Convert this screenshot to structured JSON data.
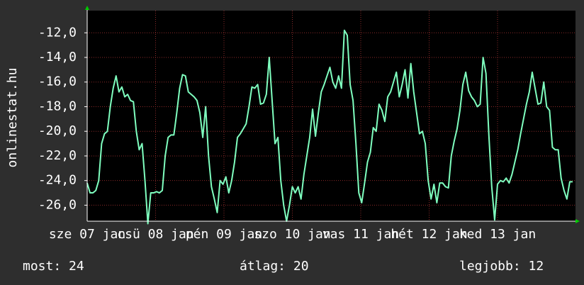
{
  "chart_data": {
    "type": "line",
    "ylabel": "onlinestat.hu",
    "xticks": [
      "sze 07 jan",
      "csü 08 jan",
      "pén 09 jan",
      "szo 10 jan",
      "vas 11 jan",
      "hét 12 jan",
      "ked 13 jan"
    ],
    "ylim": [
      -27.3,
      -10.2
    ],
    "yticks": [
      {
        "value": -26,
        "label": "-26,0"
      },
      {
        "value": -24,
        "label": "-24,0"
      },
      {
        "value": -22,
        "label": "-22,0"
      },
      {
        "value": -20,
        "label": "-20,0"
      },
      {
        "value": -18,
        "label": "-18,0"
      },
      {
        "value": -16,
        "label": "-16,0"
      },
      {
        "value": -14,
        "label": "-14,0"
      },
      {
        "value": -12,
        "label": "-12,0"
      }
    ],
    "grid": true,
    "series": [
      {
        "color": "#7fffbf",
        "values": [
          -24.2,
          -25,
          -25,
          -24.8,
          -24,
          -21,
          -20.2,
          -20,
          -18,
          -16.5,
          -15.5,
          -16.8,
          -16.4,
          -17.2,
          -17,
          -17.5,
          -17.6,
          -20,
          -21.5,
          -21,
          -24,
          -27.5,
          -25,
          -25,
          -24.9,
          -25,
          -24.8,
          -22,
          -20.5,
          -20.3,
          -20.3,
          -18.5,
          -16.5,
          -15.4,
          -15.5,
          -16.8,
          -17,
          -17.2,
          -17.5,
          -18.5,
          -20.5,
          -18,
          -22,
          -24.5,
          -25.5,
          -26.6,
          -24,
          -24.3,
          -23.7,
          -25,
          -24,
          -22.5,
          -20.5,
          -20.2,
          -19.8,
          -19.4,
          -18,
          -16.4,
          -16.5,
          -16.2,
          -17.8,
          -17.7,
          -17,
          -14,
          -17.5,
          -21,
          -20.5,
          -24,
          -26,
          -27.3,
          -26,
          -24.5,
          -25,
          -24.5,
          -25.5,
          -23.5,
          -22,
          -20.5,
          -18.2,
          -20.4,
          -18.5,
          -16.8,
          -16.2,
          -15.5,
          -14.8,
          -16,
          -16.5,
          -15.5,
          -16.5,
          -11.8,
          -12.2,
          -16.2,
          -17.5,
          -21,
          -25,
          -25.8,
          -24.2,
          -22.5,
          -21.7,
          -19.7,
          -20,
          -17.8,
          -18.3,
          -19.2,
          -17.2,
          -16.8,
          -16,
          -15.2,
          -17.2,
          -16.2,
          -15,
          -17.3,
          -14.5,
          -16.8,
          -18.5,
          -20.2,
          -20,
          -21,
          -24,
          -25.5,
          -24.3,
          -25.8,
          -24.2,
          -24.2,
          -24.5,
          -24.6,
          -22,
          -20.8,
          -19.8,
          -18.3,
          -16.2,
          -15.2,
          -16.7,
          -17.2,
          -17.5,
          -18,
          -17.8,
          -14,
          -15.3,
          -20.3,
          -24.5,
          -27.2,
          -24.3,
          -24,
          -24.1,
          -23.8,
          -24.2,
          -23.5,
          -22.5,
          -21.5,
          -20.2,
          -19,
          -17.8,
          -16.8,
          -15.2,
          -16.5,
          -17.8,
          -17.7,
          -16,
          -18,
          -18.3,
          -21.3,
          -21.5,
          -21.5,
          -23.8,
          -24.8,
          -25.5,
          -24.1,
          -24.1
        ]
      }
    ]
  },
  "footer": {
    "current": "most: 24",
    "average": "átlag: 20",
    "best": "legjobb: 12"
  }
}
